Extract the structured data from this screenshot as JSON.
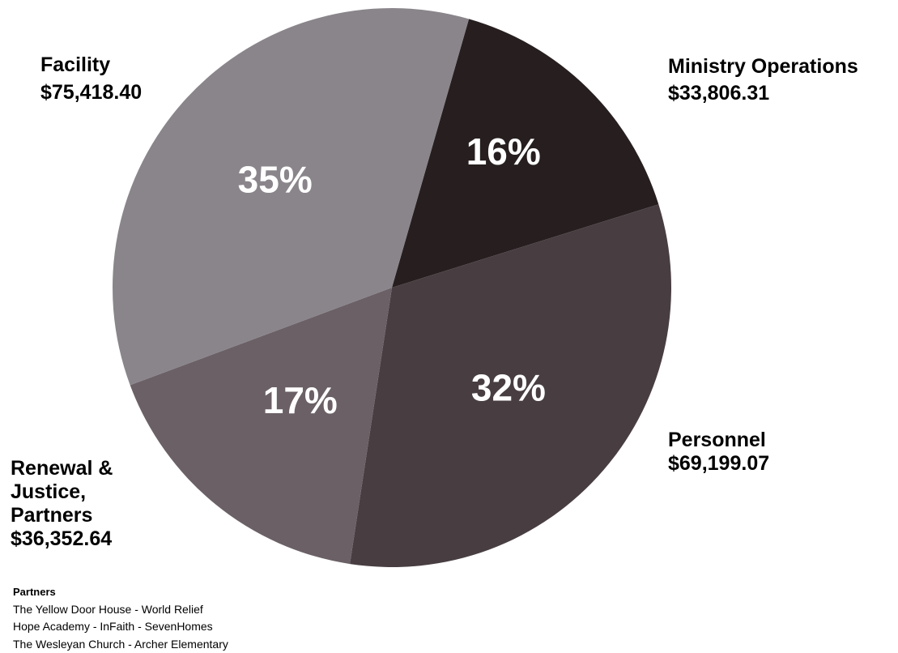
{
  "chart_data": {
    "type": "pie",
    "categories": [
      "Ministry Operations",
      "Personnel",
      "Renewal & Justice, Partners",
      "Facility"
    ],
    "values": [
      33806.31,
      69199.07,
      36352.64,
      75418.4
    ],
    "amount_labels": [
      "$33,806.31",
      "$69,199.07",
      "$36,352.64",
      "$75,418.40"
    ],
    "percent_labels": [
      "16%",
      "32%",
      "17%",
      "35%"
    ],
    "colors": [
      "#271f1f",
      "#483e42",
      "#6a6065",
      "#8a858b"
    ],
    "title": "",
    "legend": "none"
  },
  "labels": {
    "facility": {
      "name": "Facility",
      "amount": "$75,418.40"
    },
    "ministry": {
      "name": "Ministry Operations",
      "amount": "$33,806.31"
    },
    "personnel": {
      "name": "Personnel",
      "amount": "$69,199.07"
    },
    "renewal": {
      "line1": "Renewal &",
      "line2": "Justice,",
      "line3": "Partners",
      "amount": "$36,352.64"
    }
  },
  "footnote": {
    "title": "Partners",
    "lines": [
      "The Yellow Door House - World Relief",
      "Hope Academy - InFaith - SevenHomes",
      "The Wesleyan Church - Archer Elementary"
    ]
  }
}
